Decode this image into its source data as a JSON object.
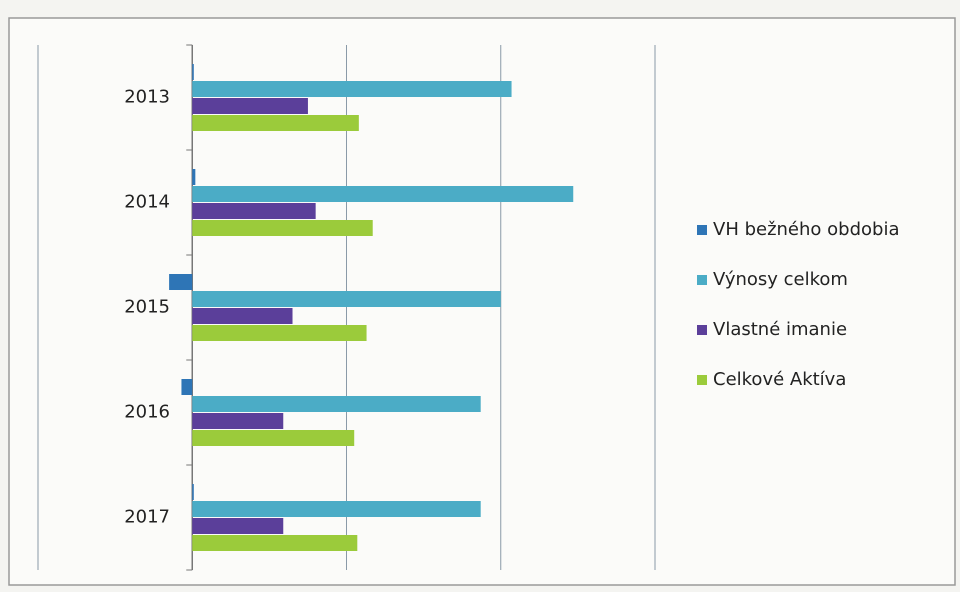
{
  "chart_data": {
    "type": "hbar",
    "categories": [
      "2013",
      "2014",
      "2015",
      "2016",
      "2017"
    ],
    "series": [
      {
        "name": "VH bežného obdobia",
        "color": "#2e75b6",
        "values": [
          0.01,
          0.02,
          -0.15,
          -0.07,
          0.01
        ]
      },
      {
        "name": "Výnosy celkom",
        "color": "#4bacc6",
        "values": [
          2.07,
          2.47,
          2.0,
          1.87,
          1.87
        ]
      },
      {
        "name": "Vlastné imanie",
        "color": "#5b3f9a",
        "values": [
          0.75,
          0.8,
          0.65,
          0.59,
          0.59
        ]
      },
      {
        "name": "Celkové Aktíva",
        "color": "#9bcb3b",
        "values": [
          1.08,
          1.17,
          1.13,
          1.05,
          1.07
        ]
      }
    ],
    "xlim": [
      -1,
      3
    ],
    "xticks": [
      -1,
      0,
      1,
      2,
      3
    ],
    "grid": true,
    "legend": "right"
  }
}
